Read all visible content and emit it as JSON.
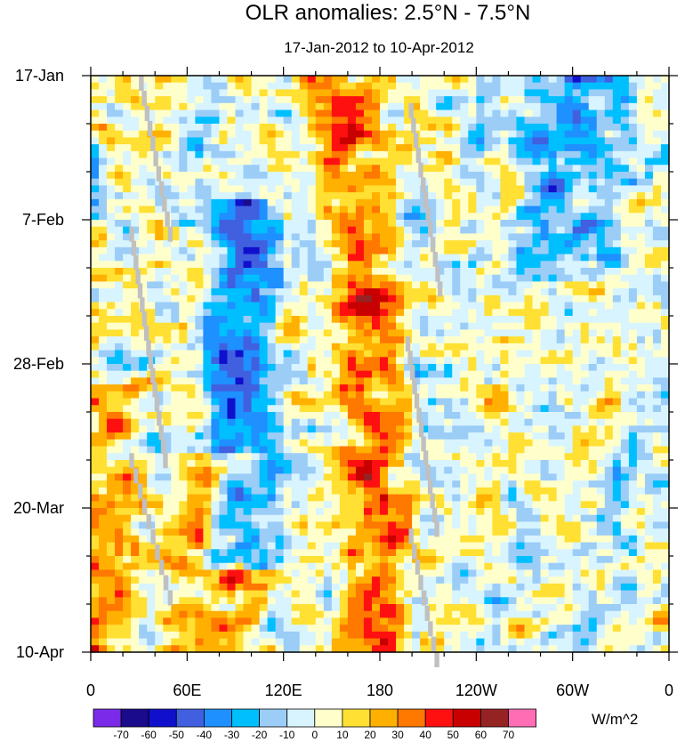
{
  "chart_data": {
    "type": "heatmap",
    "title": "OLR anomalies: 2.5°N - 7.5°N",
    "subtitle": "17-Jan-2012 to 10-Apr-2012",
    "x_ticks": [
      {
        "lon": 0,
        "label": "0"
      },
      {
        "lon": 60,
        "label": "60E"
      },
      {
        "lon": 120,
        "label": "120E"
      },
      {
        "lon": 180,
        "label": "180"
      },
      {
        "lon": 240,
        "label": "120W"
      },
      {
        "lon": 300,
        "label": "60W"
      },
      {
        "lon": 360,
        "label": "0"
      }
    ],
    "x_range": [
      0,
      360
    ],
    "y_ticks": [
      {
        "day": 0,
        "label": "17-Jan"
      },
      {
        "day": 21,
        "label": "7-Feb"
      },
      {
        "day": 42,
        "label": "28-Feb"
      },
      {
        "day": 63,
        "label": "20-Mar"
      },
      {
        "day": 84,
        "label": "10-Apr"
      }
    ],
    "y_range": [
      0,
      84
    ],
    "levels": [
      -70,
      -60,
      -50,
      -40,
      -30,
      -20,
      -10,
      0,
      10,
      20,
      30,
      40,
      50,
      60,
      70
    ],
    "colors": [
      "#7a2ae8",
      "#1a0a8c",
      "#1010cc",
      "#4060e0",
      "#1e90ff",
      "#00bfff",
      "#9bcdf7",
      "#d8f4ff",
      "#ffffcc",
      "#ffe033",
      "#ffb000",
      "#ff7800",
      "#ff1010",
      "#c80000",
      "#962323",
      "#ff6eb4"
    ],
    "colorbar_labels": [
      "-70",
      "-60",
      "-50",
      "-40",
      "-30",
      "-20",
      "-10",
      "0",
      "10",
      "20",
      "30",
      "40",
      "50",
      "60",
      "70"
    ],
    "units": "W/m^2",
    "missing_color": "#c0c0c0",
    "features": [
      {
        "desc": "warm diagonal band",
        "lon_start": 155,
        "lon_end": 195,
        "day_start": 0,
        "day_end": 84,
        "amp": 32
      },
      {
        "desc": "cold active convection",
        "lon_start": 75,
        "lon_end": 115,
        "day_start": 18,
        "day_end": 72,
        "amp": -38
      },
      {
        "desc": "warm Africa",
        "lon_start": 0,
        "lon_end": 30,
        "day_start": 45,
        "day_end": 84,
        "amp": 25
      },
      {
        "desc": "warm Indian Ocean",
        "lon_start": 40,
        "lon_end": 110,
        "day_start": 55,
        "day_end": 84,
        "amp": 22
      },
      {
        "desc": "cold western hemisphere",
        "lon_start": 270,
        "lon_end": 330,
        "day_start": 0,
        "day_end": 30,
        "amp": -25
      }
    ],
    "missing_strips": [
      {
        "lon_start": 30,
        "lon_end": 48,
        "day_start": 0,
        "day_end": 22
      },
      {
        "lon_start": 24,
        "lon_end": 45,
        "day_start": 22,
        "day_end": 55
      },
      {
        "lon_start": 24,
        "lon_end": 48,
        "day_start": 55,
        "day_end": 75
      },
      {
        "lon_start": 198,
        "lon_end": 216,
        "day_start": 4,
        "day_end": 30
      },
      {
        "lon_start": 196,
        "lon_end": 214,
        "day_start": 38,
        "day_end": 65
      },
      {
        "lon_start": 198,
        "lon_end": 214,
        "day_start": 66,
        "day_end": 84
      }
    ]
  }
}
